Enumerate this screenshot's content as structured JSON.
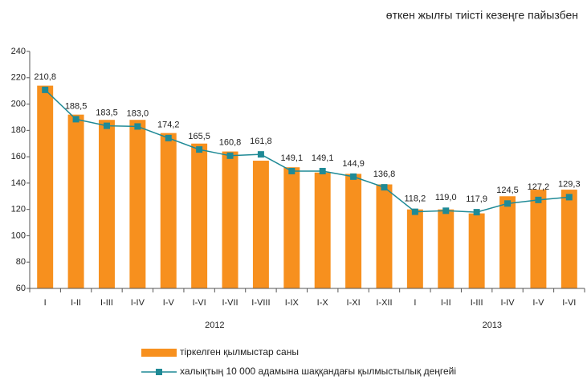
{
  "chart_data": {
    "type": "bar_line",
    "subtitle": "өткен жылғы тиісті кезеңге пайызбен",
    "category_groups": [
      {
        "label": "2012",
        "categories": [
          "I",
          "I-II",
          "I-III",
          "I-IV",
          "I-V",
          "I-VI",
          "I-VII",
          "I-VIII",
          "I-IX",
          "I-X",
          "I-XI",
          "I-XII"
        ]
      },
      {
        "label": "2013",
        "categories": [
          "I",
          "I-II",
          "I-III",
          "I-IV",
          "I-V",
          "I-VI"
        ]
      }
    ],
    "series": [
      {
        "name": "тіркелген қылмыстар саны",
        "color": "#f7901e",
        "kind": "bar",
        "values": [
          214,
          192,
          188,
          188,
          178,
          170,
          164,
          157,
          152,
          148,
          147,
          139,
          120,
          120,
          117,
          130,
          135,
          135
        ]
      },
      {
        "name": "халықтың 10 000 адамына шаққандағы қылмыстылық деңгейі",
        "color": "#1f8a96",
        "kind": "line",
        "values": [
          210.8,
          188.5,
          183.5,
          183.0,
          174.2,
          165.5,
          160.8,
          161.8,
          149.1,
          149.1,
          144.9,
          136.8,
          118.2,
          119.0,
          117.9,
          124.5,
          127.2,
          129.3
        ],
        "value_labels": [
          "210,8",
          "188,5",
          "183,5",
          "183,0",
          "174,2",
          "165,5",
          "160,8",
          "161,8",
          "149,1",
          "149,1",
          "144,9",
          "136,8",
          "118,2",
          "119,0",
          "117,9",
          "124,5",
          "127,2",
          "129,3"
        ]
      }
    ],
    "ylim": [
      60,
      240
    ],
    "yticks": [
      60,
      80,
      100,
      120,
      140,
      160,
      180,
      200,
      220,
      240
    ],
    "grid": false
  }
}
